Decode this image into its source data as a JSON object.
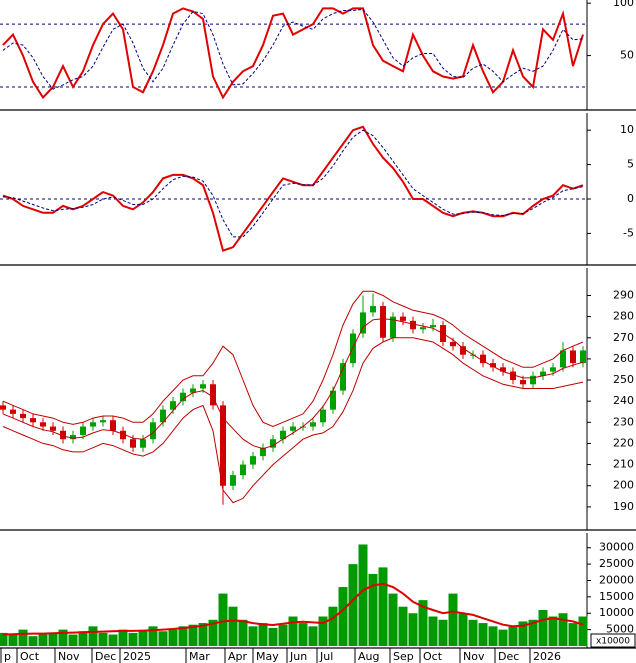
{
  "x_axis": {
    "xlim": [
      -0.3,
      58.2
    ],
    "xticks": [
      {
        "value": -0.2,
        "label": "p"
      },
      {
        "value": 1.4,
        "label": "Oct"
      },
      {
        "value": 5.2,
        "label": "Nov"
      },
      {
        "value": 8.9,
        "label": "Dec"
      },
      {
        "value": 11.7,
        "label": "2025"
      },
      {
        "value": 18.3,
        "label": "Mar"
      },
      {
        "value": 22.2,
        "label": "Apr"
      },
      {
        "value": 25,
        "label": "May"
      },
      {
        "value": 28.4,
        "label": "Jun"
      },
      {
        "value": 31.4,
        "label": "Jul"
      },
      {
        "value": 35.2,
        "label": "Aug"
      },
      {
        "value": 38.7,
        "label": "Sep"
      },
      {
        "value": 41.7,
        "label": "Oct"
      },
      {
        "value": 45.7,
        "label": "Nov"
      },
      {
        "value": 49.2,
        "label": "Dec"
      },
      {
        "value": 52.7,
        "label": "2026"
      }
    ]
  },
  "chart_data": [
    {
      "type": "line",
      "ylim": [
        0,
        103
      ],
      "yticks": [
        50,
        100
      ],
      "levels": [
        20,
        80
      ],
      "level_color": "#000080",
      "series": [
        {
          "color": "#e00000",
          "style": "solid",
          "values": [
            60,
            70,
            50,
            25,
            10,
            20,
            40,
            20,
            35,
            60,
            80,
            90,
            75,
            20,
            15,
            35,
            60,
            90,
            95,
            92,
            85,
            30,
            10,
            25,
            35,
            40,
            60,
            88,
            90,
            70,
            75,
            80,
            95,
            95,
            90,
            95,
            95,
            60,
            45,
            40,
            35,
            70,
            50,
            35,
            30,
            28,
            30,
            60,
            35,
            15,
            25,
            55,
            30,
            20,
            75,
            65,
            90,
            40,
            70
          ]
        },
        {
          "color": "#000080",
          "style": "dashed",
          "values": [
            55,
            62,
            60,
            48,
            30,
            18,
            22,
            27,
            30,
            40,
            58,
            75,
            80,
            62,
            38,
            25,
            38,
            60,
            80,
            92,
            90,
            70,
            42,
            22,
            23,
            33,
            45,
            60,
            78,
            82,
            78,
            75,
            85,
            90,
            93,
            93,
            94,
            82,
            65,
            48,
            40,
            48,
            52,
            52,
            38,
            30,
            29,
            38,
            42,
            35,
            25,
            32,
            38,
            35,
            40,
            55,
            75,
            65,
            66
          ]
        }
      ]
    },
    {
      "type": "line",
      "ylim": [
        -9.3,
        12.5
      ],
      "yticks": [
        -5,
        0,
        5,
        10
      ],
      "levels": [
        0
      ],
      "level_color": "#000080",
      "series": [
        {
          "color": "#e00000",
          "style": "solid",
          "values": [
            0.5,
            0,
            -1,
            -1.5,
            -2,
            -2,
            -1,
            -1.5,
            -1,
            0,
            1,
            0.5,
            -1,
            -1.5,
            -0.5,
            1,
            3,
            3.5,
            3.5,
            3,
            2,
            -2,
            -7.5,
            -7,
            -5,
            -3,
            -1,
            1,
            3,
            2.5,
            2,
            2,
            4,
            6,
            8,
            10,
            10.5,
            8,
            6,
            4.5,
            2.5,
            0,
            0,
            -1,
            -2,
            -2.5,
            -2,
            -1.8,
            -2,
            -2.5,
            -2.5,
            -2,
            -2.2,
            -1,
            0,
            0.5,
            2,
            1.5,
            2
          ]
        },
        {
          "color": "#000080",
          "style": "dashed",
          "values": [
            0.3,
            0.2,
            -0.3,
            -0.8,
            -1.3,
            -1.7,
            -1.5,
            -1.4,
            -1.2,
            -0.8,
            0,
            0.3,
            -0.2,
            -0.8,
            -0.8,
            0,
            1.5,
            2.8,
            3.3,
            3.2,
            2.6,
            0.5,
            -3,
            -5.5,
            -5.5,
            -4,
            -2,
            0,
            2,
            2.3,
            2.1,
            2,
            3,
            4.8,
            7,
            9,
            10,
            9.2,
            7.5,
            5.5,
            3.5,
            1.5,
            0.5,
            -0.5,
            -1.5,
            -2.2,
            -2.1,
            -1.9,
            -2,
            -2.3,
            -2.4,
            -2.1,
            -2.1,
            -1.4,
            -0.5,
            0.2,
            1.2,
            1.5,
            1.8
          ]
        }
      ]
    },
    {
      "type": "candlestick",
      "ylim": [
        180,
        303
      ],
      "yticks": [
        190,
        200,
        210,
        220,
        230,
        240,
        250,
        260,
        270,
        280,
        290
      ],
      "up_color": "#00a000",
      "down_color": "#d00000",
      "open": [
        238,
        236,
        234,
        232,
        230,
        228,
        226,
        222,
        224,
        228,
        230,
        231,
        226,
        222,
        218,
        222,
        230,
        236,
        240,
        244,
        246,
        248,
        238,
        200,
        205,
        210,
        214,
        218,
        222,
        226,
        228,
        228,
        230,
        236,
        245,
        258,
        272,
        282,
        285,
        270,
        280,
        278,
        274,
        275,
        276,
        268,
        266,
        262,
        262,
        258,
        256,
        254,
        250,
        248,
        252,
        254,
        256,
        264,
        258
      ],
      "high": [
        240,
        238,
        236,
        234,
        232,
        230,
        228,
        226,
        230,
        232,
        233,
        233,
        228,
        224,
        224,
        232,
        238,
        242,
        246,
        248,
        250,
        250,
        240,
        207,
        212,
        216,
        220,
        224,
        228,
        230,
        230,
        232,
        238,
        247,
        260,
        274,
        290,
        291,
        287,
        282,
        282,
        280,
        277,
        279,
        278,
        270,
        268,
        264,
        264,
        260,
        258,
        256,
        252,
        254,
        256,
        258,
        268,
        266,
        266
      ],
      "low": [
        234,
        232,
        230,
        228,
        226,
        224,
        220,
        220,
        222,
        226,
        228,
        224,
        220,
        216,
        216,
        220,
        228,
        234,
        238,
        242,
        244,
        236,
        191,
        198,
        203,
        208,
        212,
        216,
        220,
        224,
        226,
        226,
        228,
        234,
        243,
        256,
        270,
        280,
        268,
        268,
        276,
        272,
        272,
        273,
        266,
        264,
        260,
        260,
        256,
        254,
        252,
        248,
        246,
        246,
        250,
        252,
        254,
        256,
        256
      ],
      "close": [
        236,
        234,
        232,
        230,
        228,
        226,
        222,
        224,
        228,
        230,
        231,
        226,
        222,
        218,
        222,
        230,
        236,
        240,
        244,
        246,
        248,
        238,
        200,
        205,
        210,
        214,
        218,
        222,
        226,
        228,
        228,
        230,
        236,
        245,
        258,
        272,
        282,
        285,
        270,
        280,
        278,
        274,
        275,
        276,
        268,
        266,
        262,
        262,
        258,
        256,
        254,
        250,
        248,
        252,
        254,
        256,
        264,
        258,
        264
      ],
      "series": [
        {
          "color": "#c00000",
          "values": [
            240,
            238,
            236,
            234,
            233,
            232,
            230,
            229,
            230,
            232,
            233,
            233,
            232,
            230,
            230,
            234,
            240,
            245,
            250,
            252,
            252,
            258,
            266,
            262,
            250,
            238,
            230,
            228,
            230,
            232,
            234,
            240,
            250,
            262,
            276,
            286,
            292,
            292,
            290,
            287,
            285,
            283,
            282,
            281,
            279,
            276,
            272,
            269,
            266,
            263,
            260,
            258,
            256,
            256,
            258,
            260,
            264,
            266,
            268
          ]
        },
        {
          "color": "#c00000",
          "values": [
            234,
            232,
            230,
            228,
            226.5,
            225.5,
            223.5,
            222.5,
            223,
            225,
            226.5,
            226,
            224.5,
            222.5,
            222,
            225,
            230,
            235.5,
            241,
            244,
            245,
            242,
            232,
            227,
            222,
            219,
            217.5,
            219,
            222,
            225,
            228,
            232,
            237.5,
            245,
            255.5,
            265.5,
            275,
            278.5,
            279,
            278.5,
            277.5,
            276.5,
            275.5,
            274.5,
            272,
            269,
            265,
            262,
            259,
            256.5,
            254,
            252.5,
            251,
            251,
            252,
            253,
            255.5,
            257,
            258.5
          ]
        },
        {
          "color": "#c00000",
          "values": [
            228,
            226,
            224,
            222,
            220,
            219,
            217,
            216,
            216,
            218,
            220,
            219,
            217,
            215,
            214,
            216,
            220,
            226,
            232,
            236,
            238,
            226,
            198,
            192,
            194,
            200,
            205,
            210,
            214,
            218,
            222,
            224,
            225,
            228,
            235,
            245,
            258,
            265,
            268,
            270,
            270,
            270,
            269,
            268,
            265,
            262,
            258,
            255,
            252,
            250,
            248,
            247,
            246,
            246,
            246,
            246,
            247,
            248,
            249
          ]
        }
      ]
    },
    {
      "type": "bar",
      "ylim": [
        0,
        34500
      ],
      "yticks": [
        5000,
        10000,
        15000,
        20000,
        25000,
        30000
      ],
      "unit_label": "x10000",
      "color": "#009900",
      "values": [
        4000,
        3500,
        5000,
        3000,
        3500,
        4000,
        5000,
        3500,
        4500,
        6000,
        4000,
        3500,
        5000,
        4000,
        4500,
        6000,
        4500,
        5000,
        6000,
        6500,
        7000,
        8000,
        16000,
        12000,
        8000,
        6000,
        7000,
        5500,
        6500,
        9000,
        7000,
        6000,
        9000,
        12000,
        18000,
        25000,
        31000,
        22000,
        24000,
        16000,
        12000,
        10000,
        14000,
        9000,
        8000,
        16000,
        10000,
        8000,
        7000,
        6000,
        5000,
        6000,
        7500,
        8000,
        11000,
        9000,
        10000,
        7000,
        9000
      ],
      "series": [
        {
          "color": "#e00000",
          "values": [
            3500,
            3600,
            3700,
            3800,
            3800,
            3900,
            4000,
            4100,
            4200,
            4300,
            4400,
            4500,
            4600,
            4600,
            4700,
            4800,
            5000,
            5200,
            5500,
            5800,
            6200,
            6800,
            7500,
            7800,
            7600,
            7000,
            6600,
            6400,
            6800,
            7200,
            7400,
            7200,
            7000,
            8500,
            11000,
            14000,
            17000,
            18500,
            19000,
            18000,
            16000,
            13500,
            12000,
            11000,
            10000,
            10500,
            10000,
            9500,
            8500,
            7500,
            6500,
            6000,
            6200,
            7000,
            8000,
            8500,
            8000,
            7500,
            6500
          ]
        }
      ]
    }
  ]
}
